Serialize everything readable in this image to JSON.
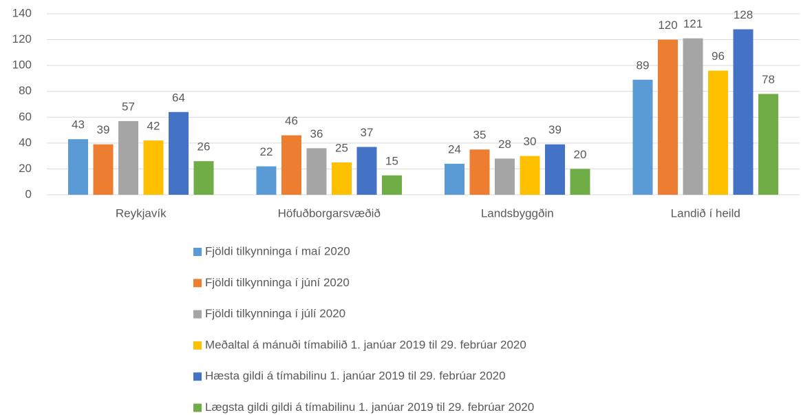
{
  "chart_data": {
    "type": "bar",
    "categories": [
      "Reykjavík",
      "Höfuðborgarsvæðið",
      "Landsbyggðin",
      "Landið í heild"
    ],
    "series": [
      {
        "name": "Fjöldi tilkynninga í maí 2020",
        "color": "#5b9bd5",
        "values": [
          43,
          22,
          24,
          89
        ]
      },
      {
        "name": "Fjöldi tilkynninga í júní 2020",
        "color": "#ed7d31",
        "values": [
          39,
          46,
          35,
          120
        ]
      },
      {
        "name": "Fjöldi tilkynninga í júlí 2020",
        "color": "#a5a5a5",
        "values": [
          57,
          36,
          28,
          121
        ]
      },
      {
        "name": "Meðaltal á mánuði tímabilið 1. janúar 2019 til 29. febrúar 2020",
        "color": "#ffc000",
        "values": [
          42,
          25,
          30,
          96
        ]
      },
      {
        "name": "Hæsta gildi á tímabilinu 1. janúar 2019 til 29. febrúar 2020",
        "color": "#4472c4",
        "values": [
          64,
          37,
          39,
          128
        ]
      },
      {
        "name": "Lægsta gildi gildi á tímabilinu 1. janúar 2019 til 29. febrúar 2020",
        "color": "#70ad47",
        "values": [
          26,
          15,
          20,
          78
        ]
      }
    ],
    "ylim": [
      0,
      140
    ],
    "yticks": [
      0,
      20,
      40,
      60,
      80,
      100,
      120,
      140
    ],
    "grid": true,
    "legend": "bottom"
  }
}
